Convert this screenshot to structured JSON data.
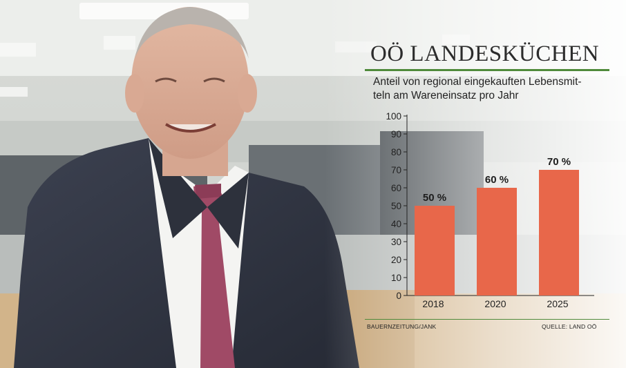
{
  "header": {
    "title": "OÖ LANDESKÜCHEN",
    "subtitle_line1": "Anteil von regional eingekauften Lebensmit-",
    "subtitle_line2": "teln am Wareneinsatz pro Jahr"
  },
  "footer": {
    "credit": "BAUERNZEITUNG/JANK",
    "source": "QUELLE: LAND OÖ"
  },
  "colors": {
    "bar": "#e8674a",
    "rule": "#4f8a3a",
    "text": "#222222"
  },
  "photo": {
    "icon": "portrait-photo-man-in-suit"
  },
  "chart_data": {
    "type": "bar",
    "categories": [
      "2018",
      "2020",
      "2025"
    ],
    "values": [
      50,
      60,
      70
    ],
    "data_labels": [
      "50 %",
      "60 %",
      "70 %"
    ],
    "title": "OÖ LANDESKÜCHEN",
    "subtitle": "Anteil von regional eingekauften Lebensmitteln am Wareneinsatz pro Jahr",
    "xlabel": "",
    "ylabel": "",
    "ylim": [
      0,
      100
    ],
    "yticks": [
      0,
      10,
      20,
      30,
      40,
      50,
      60,
      70,
      80,
      90,
      100
    ],
    "grid": false,
    "legend": "none"
  }
}
